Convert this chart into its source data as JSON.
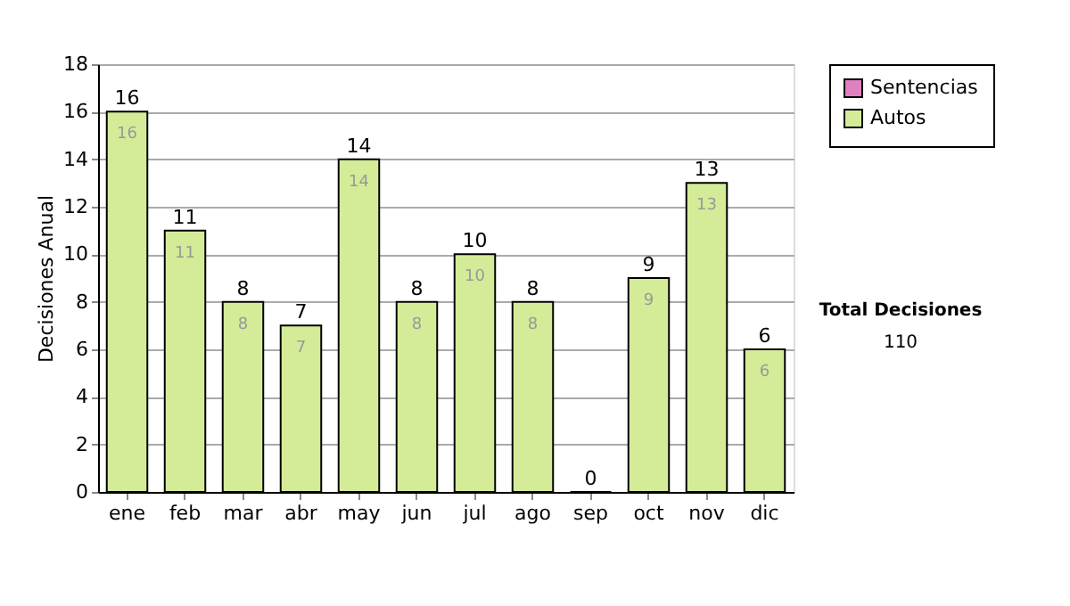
{
  "chart_data": {
    "type": "bar",
    "stacked": true,
    "ylabel": "Decisiones Anual",
    "categories": [
      "ene",
      "feb",
      "mar",
      "abr",
      "may",
      "jun",
      "jul",
      "ago",
      "sep",
      "oct",
      "nov",
      "dic"
    ],
    "series": [
      {
        "name": "Sentencias",
        "color": "#e080c0",
        "values": [
          0,
          0,
          0,
          0,
          0,
          0,
          0,
          0,
          0,
          0,
          0,
          0
        ]
      },
      {
        "name": "Autos",
        "color": "#d4ec98",
        "values": [
          16,
          11,
          8,
          7,
          14,
          8,
          10,
          8,
          0,
          9,
          13,
          6
        ],
        "value_labels": [
          "16",
          "11",
          "8",
          "7",
          "14",
          "8",
          "10",
          "8",
          null,
          "9",
          "13",
          "6"
        ]
      }
    ],
    "totals": [
      "16",
      "11",
      "8",
      "7",
      "14",
      "8",
      "10",
      "8",
      "0",
      "9",
      "13",
      "6"
    ],
    "ylim": [
      0,
      18
    ],
    "yticks": [
      0,
      2,
      4,
      6,
      8,
      10,
      12,
      14,
      16,
      18
    ],
    "grid": "y",
    "legend": "right",
    "annotations": [
      "Total Decisiones",
      "110"
    ]
  }
}
